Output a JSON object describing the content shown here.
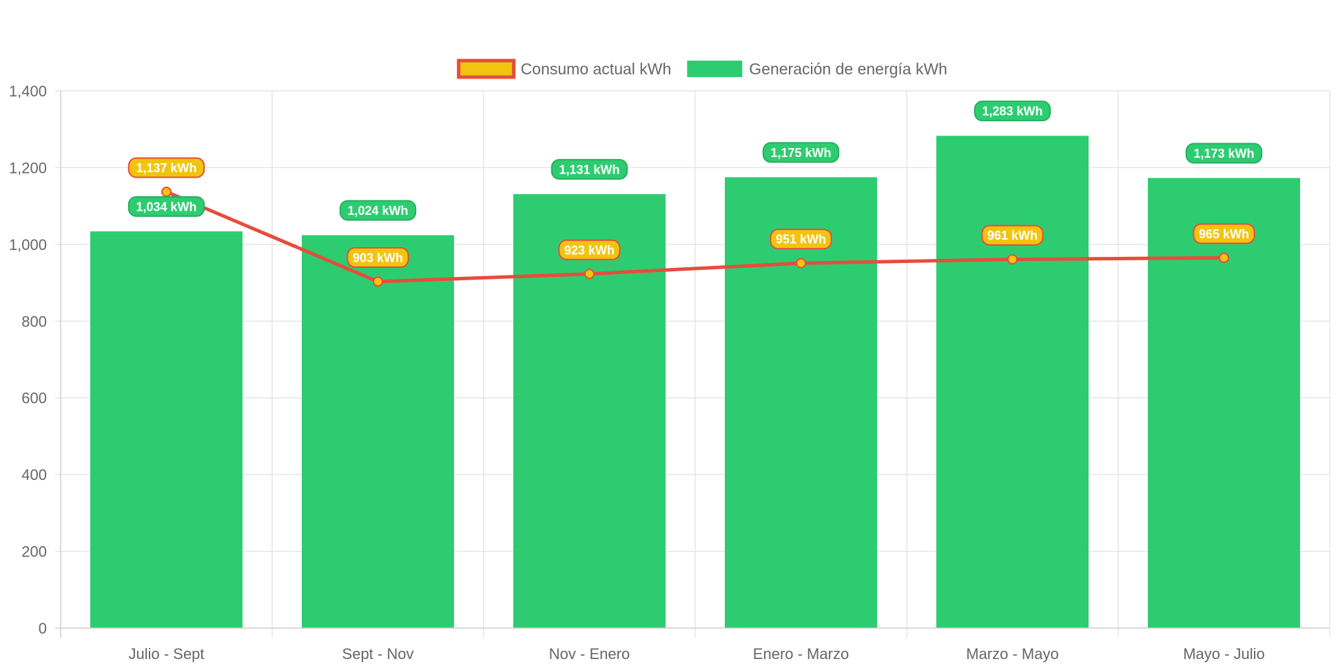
{
  "chart_data": {
    "type": "bar",
    "title": "",
    "xlabel": "",
    "ylabel": "",
    "ylim": [
      0,
      1400
    ],
    "y_ticks": [
      0,
      200,
      400,
      600,
      800,
      1000,
      1200,
      1400
    ],
    "y_tick_labels": [
      "0",
      "200",
      "400",
      "600",
      "800",
      "1,000",
      "1,200",
      "1,400"
    ],
    "grid": true,
    "legend_position": "top",
    "categories": [
      "Julio - Sept",
      "Sept - Nov",
      "Nov - Enero",
      "Enero - Marzo",
      "Marzo - Mayo",
      "Mayo - Julio"
    ],
    "series": [
      {
        "name": "Consumo actual kWh",
        "kind": "line",
        "values": [
          1137,
          903,
          923,
          951,
          961,
          965
        ],
        "labels": [
          "1,137 kWh",
          "903 kWh",
          "923 kWh",
          "951 kWh",
          "961 kWh",
          "965 kWh"
        ],
        "color": "#f1c40f",
        "border_color": "#e74c3c"
      },
      {
        "name": "Generación de energía kWh",
        "kind": "bar",
        "values": [
          1034,
          1024,
          1131,
          1175,
          1283,
          1173
        ],
        "labels": [
          "1,034 kWh",
          "1,024 kWh",
          "1,131 kWh",
          "1,175 kWh",
          "1,283 kWh",
          "1,173 kWh"
        ],
        "color": "#2ecc71",
        "border_color": "#27ae60"
      }
    ]
  }
}
